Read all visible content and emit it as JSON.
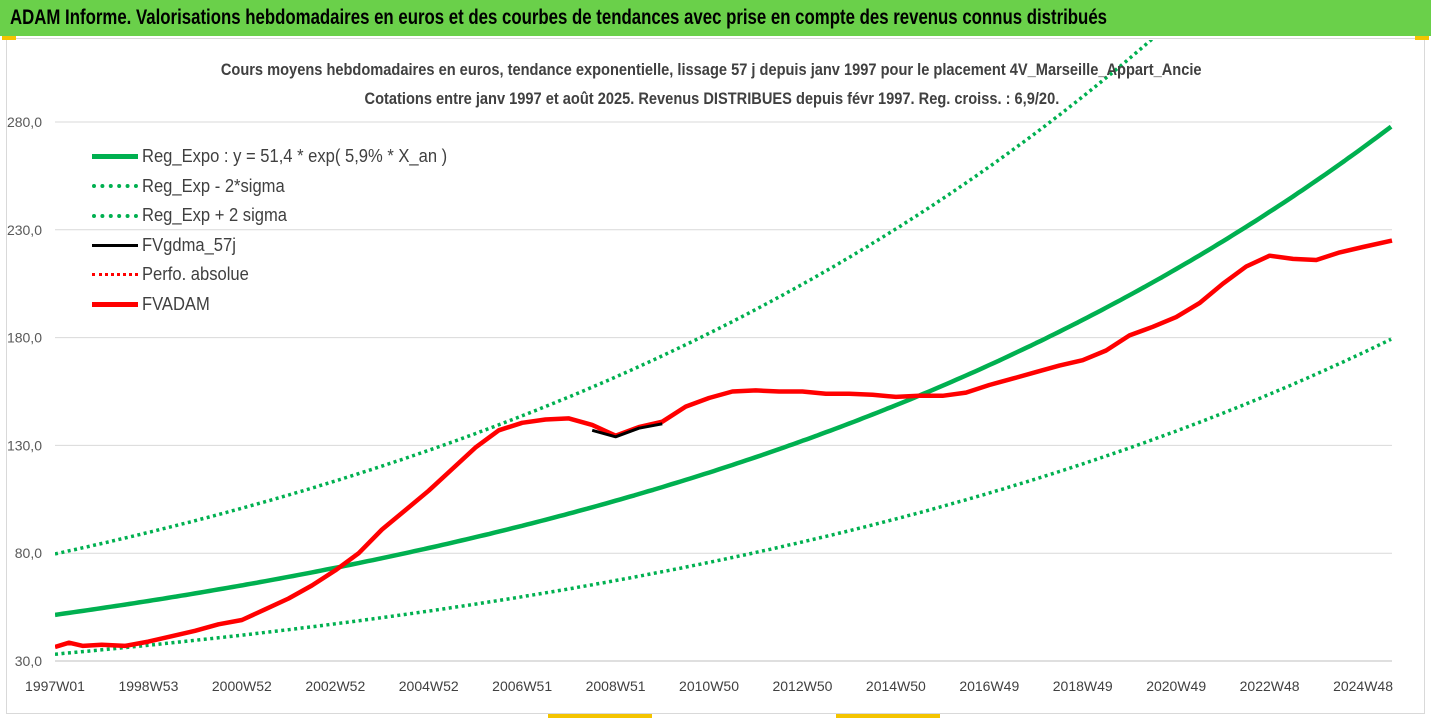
{
  "banner": {
    "text": "ADAM Informe. Valorisations hebdomadaires en euros et des courbes de tendances avec prise en compte des revenus connus distribués",
    "background": "#6ad04a"
  },
  "chart_data": {
    "type": "line",
    "title": "Cours moyens hebdomadaires en euros, tendance exponentielle, lissage 57 j depuis janv 1997  pour le placement 4V_Marseille_Appart_Ancie",
    "subtitle": "Cotations entre janv 1997 et août 2025. Revenus DISTRIBUES depuis févr 1997. Reg. croiss. : 6,9/20.",
    "xlabel": "",
    "ylabel": "",
    "x_range": [
      1997.0,
      2025.62
    ],
    "ylim": [
      30,
      280
    ],
    "y_ticks": [
      "30,0",
      "80,0",
      "130,0",
      "180,0",
      "230,0",
      "280,0"
    ],
    "x_ticks": [
      {
        "label": "1997W01",
        "x": 1997.0
      },
      {
        "label": "1998W53",
        "x": 1999.0
      },
      {
        "label": "2000W52",
        "x": 2001.0
      },
      {
        "label": "2002W52",
        "x": 2003.0
      },
      {
        "label": "2004W52",
        "x": 2005.0
      },
      {
        "label": "2006W51",
        "x": 2007.0
      },
      {
        "label": "2008W51",
        "x": 2009.0
      },
      {
        "label": "2010W50",
        "x": 2011.0
      },
      {
        "label": "2012W50",
        "x": 2013.0
      },
      {
        "label": "2014W50",
        "x": 2015.0
      },
      {
        "label": "2016W49",
        "x": 2017.0
      },
      {
        "label": "2018W49",
        "x": 2019.0
      },
      {
        "label": "2020W49",
        "x": 2021.0
      },
      {
        "label": "2022W48",
        "x": 2023.0
      },
      {
        "label": "2024W48",
        "x": 2025.0
      }
    ],
    "grid": "horizontal",
    "legend_position": "top-left",
    "regression": {
      "a": 51.4,
      "rate": 0.059,
      "sigma_factor": 1.55
    },
    "series": [
      {
        "name": "Reg_Expo : y = 51,4 * exp( 5,9% *  X_an )",
        "style": "solid",
        "color": "#00b050",
        "x": [
          1997.0,
          2001.0,
          2005.0,
          2009.0,
          2013.0,
          2017.0,
          2021.0,
          2025.62
        ],
        "values": [
          51.4,
          65.0,
          82.0,
          103.5,
          131.0,
          165.5,
          209.5,
          275.0
        ]
      },
      {
        "name": "Reg_Exp - 2*sigma",
        "style": "dotted",
        "color": "#00b050",
        "x": [
          1997.0,
          2001.0,
          2005.0,
          2009.0,
          2013.0,
          2017.0,
          2021.0,
          2025.62
        ],
        "values": [
          33.0,
          42.0,
          53.0,
          66.5,
          84.5,
          107.0,
          135.0,
          177.5
        ]
      },
      {
        "name": "Reg_Exp + 2 sigma",
        "style": "dotted",
        "color": "#00b050",
        "x": [
          1997.0,
          2001.0,
          2005.0,
          2009.0,
          2013.0,
          2011.0,
          2016.0,
          2018.0
        ],
        "values": [
          80.0,
          100.5,
          127.0,
          160.5,
          203.5,
          181.0,
          261.0,
          292.0
        ]
      },
      {
        "name": "FVgdma_57j",
        "style": "solid",
        "color": "#000000",
        "x": [
          2008.5,
          2009.0,
          2009.5,
          2010.0
        ],
        "values": [
          137.0,
          134.0,
          138.0,
          140.0
        ]
      },
      {
        "name": "Perfo. absolue",
        "style": "dotted",
        "color": "#ff0000",
        "x": [],
        "values": []
      },
      {
        "name": "FVADAM",
        "style": "solid",
        "color": "#ff0000",
        "x": [
          1997.0,
          1997.3,
          1997.6,
          1998.0,
          1998.5,
          1999.0,
          1999.5,
          2000.0,
          2000.5,
          2001.0,
          2001.5,
          2002.0,
          2002.5,
          2003.0,
          2003.5,
          2004.0,
          2004.5,
          2005.0,
          2005.5,
          2006.0,
          2006.5,
          2007.0,
          2007.5,
          2008.0,
          2008.5,
          2009.0,
          2009.5,
          2010.0,
          2010.5,
          2011.0,
          2011.5,
          2012.0,
          2012.5,
          2013.0,
          2013.5,
          2014.0,
          2014.5,
          2015.0,
          2015.5,
          2016.0,
          2016.5,
          2017.0,
          2017.5,
          2018.0,
          2018.5,
          2019.0,
          2019.5,
          2020.0,
          2020.5,
          2021.0,
          2021.5,
          2022.0,
          2022.5,
          2023.0,
          2023.5,
          2024.0,
          2024.5,
          2025.0,
          2025.62
        ],
        "values": [
          36.5,
          38.5,
          37.0,
          37.5,
          37.0,
          39.0,
          41.5,
          44.0,
          47.0,
          49.0,
          54.0,
          59.0,
          65.0,
          72.0,
          80.0,
          91.0,
          100.0,
          109.0,
          119.0,
          129.0,
          137.0,
          140.5,
          142.0,
          142.5,
          139.5,
          134.5,
          138.5,
          141.0,
          148.0,
          152.0,
          155.0,
          155.5,
          155.0,
          155.0,
          154.0,
          154.0,
          153.5,
          152.5,
          153.0,
          153.0,
          154.5,
          158.0,
          161.0,
          164.0,
          167.0,
          169.5,
          174.0,
          181.0,
          185.0,
          189.5,
          196.0,
          205.0,
          213.0,
          218.0,
          216.5,
          216.0,
          219.5,
          222.0,
          225.0
        ]
      }
    ]
  }
}
